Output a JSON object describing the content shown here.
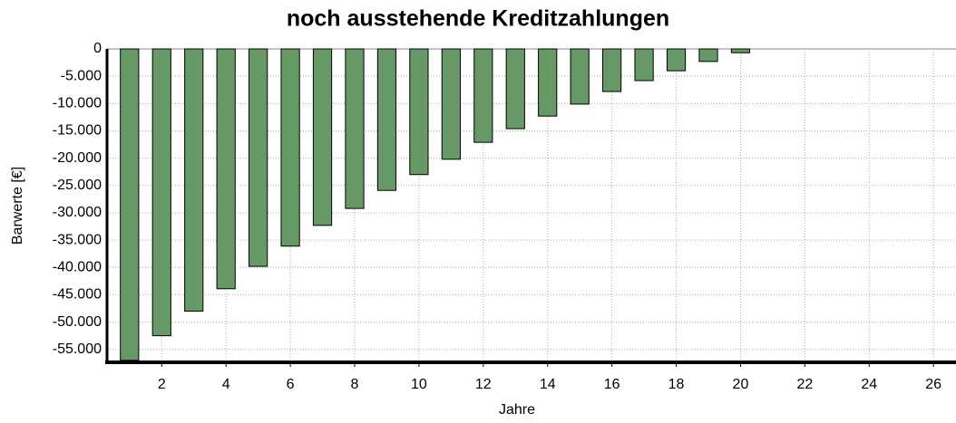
{
  "chart_data": {
    "type": "bar",
    "title": "noch ausstehende Kreditzahlungen",
    "x_label": "Jahre",
    "y_label": "Barwerte [€]",
    "x": [
      1,
      2,
      3,
      4,
      5,
      6,
      7,
      8,
      9,
      10,
      11,
      12,
      13,
      14,
      15,
      16,
      17,
      18,
      19,
      20
    ],
    "values": [
      -57000,
      -52500,
      -48000,
      -43900,
      -39800,
      -36100,
      -32300,
      -29200,
      -25900,
      -23000,
      -20200,
      -17100,
      -14600,
      -12300,
      -10100,
      -7800,
      -5800,
      -4000,
      -2300,
      -700
    ],
    "color": "#669966",
    "xlim": [
      0.3,
      26.7
    ],
    "xticks": [
      2,
      4,
      6,
      8,
      10,
      12,
      14,
      16,
      18,
      20,
      22,
      24,
      26
    ],
    "ylim": [
      -57200,
      0
    ],
    "yticks": [
      0,
      {
        "value": -5000,
        "label": "-5.000"
      },
      {
        "value": -10000,
        "label": "-10.000"
      },
      {
        "value": -15000,
        "label": "-15.000"
      },
      {
        "value": -20000,
        "label": "-20.000"
      },
      {
        "value": -25000,
        "label": "-25.000"
      },
      {
        "value": -30000,
        "label": "-30.000"
      },
      {
        "value": -35000,
        "label": "-35.000"
      },
      {
        "value": -40000,
        "label": "-40.000"
      },
      {
        "value": -45000,
        "label": "-45.000"
      },
      {
        "value": -50000,
        "label": "-50.000"
      },
      {
        "value": -55000,
        "label": "-55.000"
      }
    ],
    "grid": true
  }
}
